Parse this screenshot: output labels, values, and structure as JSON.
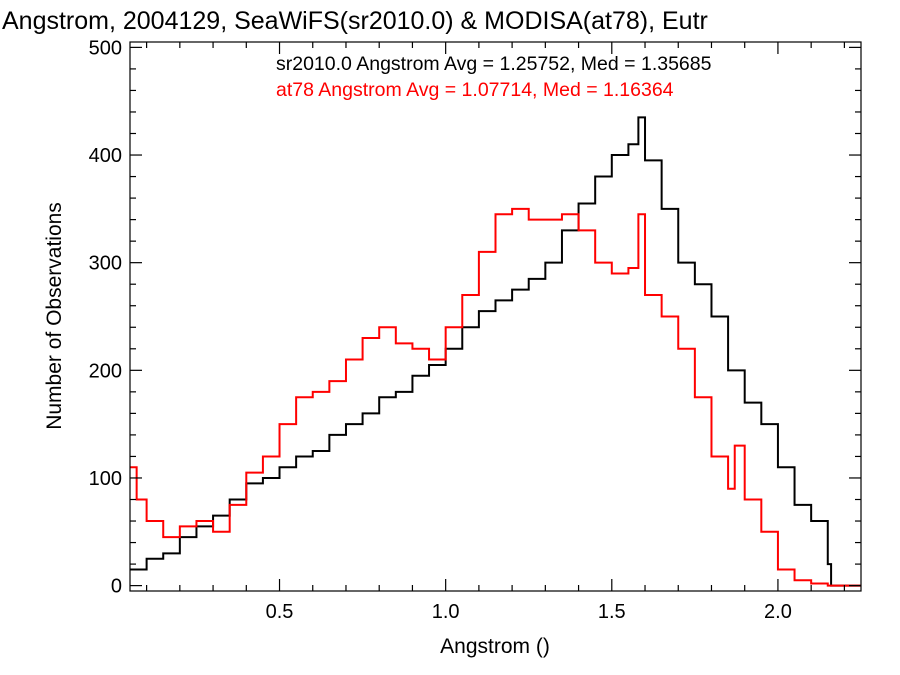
{
  "chart_data": {
    "type": "line",
    "title": "Angstrom, 2004129, SeaWiFS(sr2010.0) & MODISA(at78), Eutr",
    "xlabel": "Angstrom ()",
    "ylabel": "Number of Observations",
    "xlim": [
      0.05,
      2.25
    ],
    "ylim": [
      -5,
      505
    ],
    "x_ticks": [
      "0.5",
      "1.0",
      "1.5",
      "2.0"
    ],
    "y_ticks": [
      "0",
      "100",
      "200",
      "300",
      "400",
      "500"
    ],
    "grid": false,
    "legend_placement": "top-right",
    "annotations": [
      {
        "text": "sr2010.0 Angstrom Avg = 1.25752, Med = 1.35685",
        "color": "#000000"
      },
      {
        "text": "at78 Angstrom Avg = 1.07714, Med = 1.16364",
        "color": "#ff0000"
      }
    ],
    "series": [
      {
        "color": "#000000",
        "step": "histogram",
        "x": [
          0.05,
          0.1,
          0.15,
          0.2,
          0.25,
          0.3,
          0.35,
          0.4,
          0.45,
          0.5,
          0.55,
          0.6,
          0.65,
          0.7,
          0.75,
          0.8,
          0.85,
          0.9,
          0.95,
          1.0,
          1.05,
          1.1,
          1.15,
          1.2,
          1.25,
          1.3,
          1.35,
          1.4,
          1.45,
          1.5,
          1.55,
          1.58,
          1.6,
          1.65,
          1.7,
          1.75,
          1.8,
          1.85,
          1.9,
          1.95,
          2.0,
          2.05,
          2.1,
          2.15,
          2.16,
          2.25
        ],
        "y": [
          15,
          25,
          30,
          45,
          55,
          65,
          80,
          95,
          100,
          110,
          120,
          125,
          140,
          150,
          160,
          175,
          180,
          195,
          205,
          220,
          240,
          255,
          265,
          275,
          285,
          300,
          330,
          355,
          380,
          400,
          410,
          435,
          395,
          350,
          300,
          280,
          250,
          200,
          170,
          150,
          110,
          75,
          60,
          20,
          0,
          0
        ]
      },
      {
        "color": "#ff0000",
        "step": "histogram",
        "x": [
          0.05,
          0.07,
          0.1,
          0.15,
          0.2,
          0.25,
          0.3,
          0.35,
          0.4,
          0.45,
          0.5,
          0.55,
          0.6,
          0.65,
          0.7,
          0.75,
          0.8,
          0.85,
          0.9,
          0.95,
          1.0,
          1.05,
          1.1,
          1.15,
          1.2,
          1.25,
          1.3,
          1.35,
          1.4,
          1.45,
          1.5,
          1.55,
          1.58,
          1.6,
          1.65,
          1.7,
          1.75,
          1.8,
          1.85,
          1.87,
          1.9,
          1.95,
          2.0,
          2.05,
          2.1,
          2.15,
          2.25
        ],
        "y": [
          110,
          80,
          60,
          45,
          55,
          60,
          50,
          75,
          105,
          120,
          150,
          175,
          180,
          190,
          210,
          230,
          240,
          225,
          220,
          210,
          240,
          270,
          310,
          345,
          350,
          340,
          340,
          345,
          330,
          300,
          290,
          295,
          345,
          270,
          250,
          220,
          175,
          120,
          90,
          130,
          80,
          50,
          15,
          5,
          2,
          0,
          0
        ]
      }
    ]
  }
}
